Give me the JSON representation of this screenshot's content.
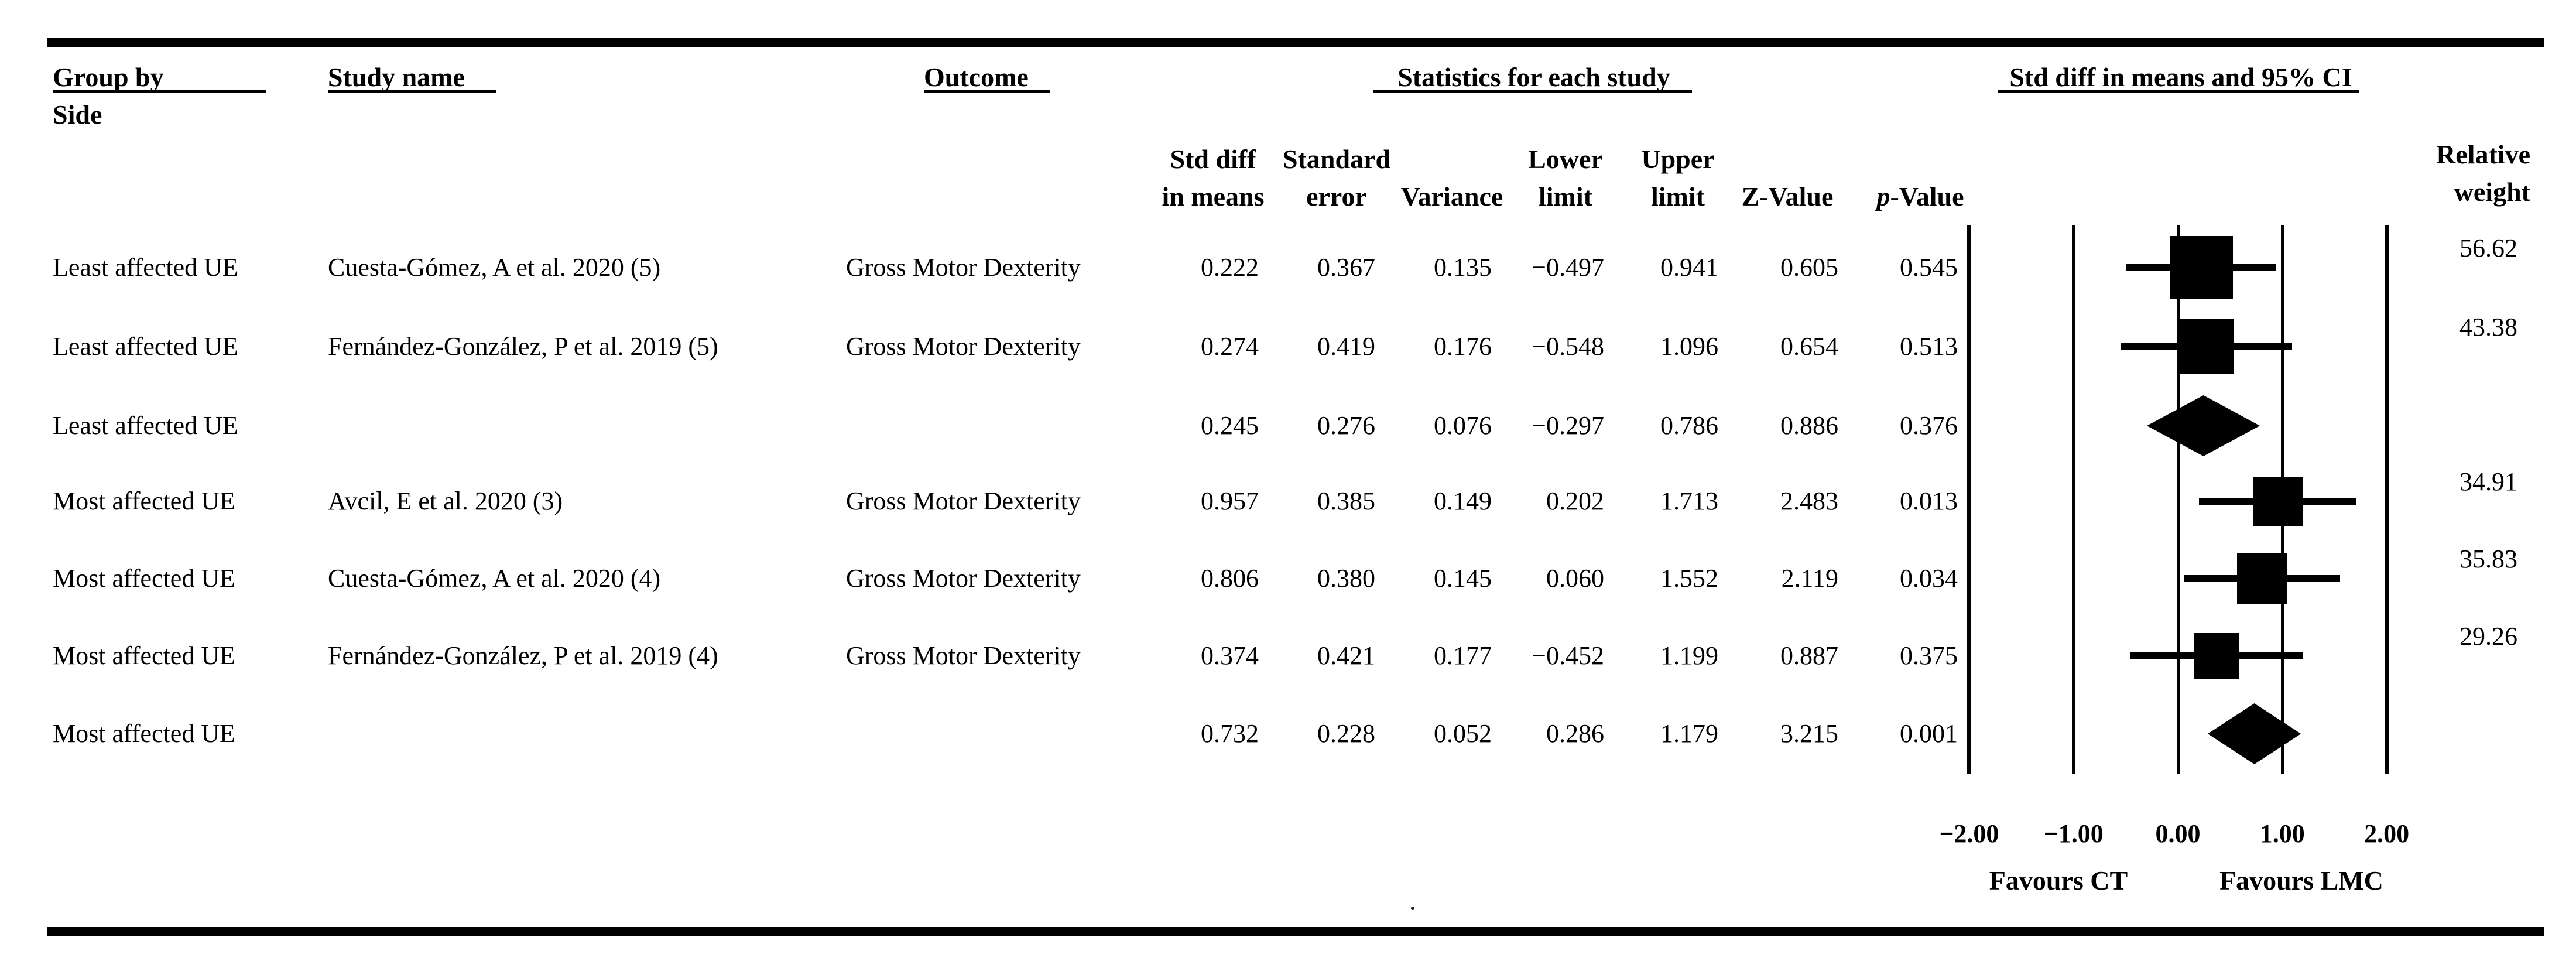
{
  "figure": {
    "title_row": {
      "group_by": "Group by",
      "group_by_line2": "Side",
      "study_name": "Study name",
      "outcome": "Outcome",
      "statistics": "Statistics for each study",
      "ci": "Std diff in means and 95% CI"
    },
    "stat_columns": [
      {
        "line1": "Std diff",
        "line2": "in means"
      },
      {
        "line1": "Standard",
        "line2": "error"
      },
      {
        "line1": "",
        "line2": "Variance"
      },
      {
        "line1": "Lower",
        "line2": "limit"
      },
      {
        "line1": "Upper",
        "line2": "limit"
      },
      {
        "line1": "",
        "line2": "Z-Value"
      },
      {
        "line1": "",
        "line2": "-Value",
        "italic_prefix": "p"
      }
    ],
    "relative_weight": {
      "line1": "Relative",
      "line2": "weight"
    },
    "rows": [
      {
        "group": "Least affected UE",
        "study": "Cuesta-Gómez, A et al. 2020 (5)",
        "outcome": "Gross Motor Dexterity",
        "stats": [
          "0.222",
          "0.367",
          "0.135",
          "−0.497",
          "0.941",
          "0.605",
          "0.545"
        ],
        "weight": "56.62",
        "marker": {
          "type": "square",
          "mean": 0.222,
          "lower": -0.497,
          "upper": 0.941,
          "weight": 56.62
        }
      },
      {
        "group": "Least affected UE",
        "study": "Fernández-González, P et al. 2019 (5)",
        "outcome": "Gross Motor Dexterity",
        "stats": [
          "0.274",
          "0.419",
          "0.176",
          "−0.548",
          "1.096",
          "0.654",
          "0.513"
        ],
        "weight": "43.38",
        "marker": {
          "type": "square",
          "mean": 0.274,
          "lower": -0.548,
          "upper": 1.096,
          "weight": 43.38
        }
      },
      {
        "group": "Least affected UE",
        "study": "",
        "outcome": "",
        "stats": [
          "0.245",
          "0.276",
          "0.076",
          "−0.297",
          "0.786",
          "0.886",
          "0.376"
        ],
        "weight": "",
        "marker": {
          "type": "diamond",
          "mean": 0.245,
          "lower": -0.297,
          "upper": 0.786
        }
      },
      {
        "group": "Most affected UE",
        "study": "Avcil, E et al. 2020 (3)",
        "outcome": "Gross Motor Dexterity",
        "stats": [
          "0.957",
          "0.385",
          "0.149",
          "0.202",
          "1.713",
          "2.483",
          "0.013"
        ],
        "weight": "34.91",
        "marker": {
          "type": "square",
          "mean": 0.957,
          "lower": 0.202,
          "upper": 1.713,
          "weight": 34.91
        }
      },
      {
        "group": "Most affected UE",
        "study": "Cuesta-Gómez, A et al. 2020 (4)",
        "outcome": "Gross Motor Dexterity",
        "stats": [
          "0.806",
          "0.380",
          "0.145",
          "0.060",
          "1.552",
          "2.119",
          "0.034"
        ],
        "weight": "35.83",
        "marker": {
          "type": "square",
          "mean": 0.806,
          "lower": 0.06,
          "upper": 1.552,
          "weight": 35.83
        }
      },
      {
        "group": "Most affected UE",
        "study": "Fernández-González, P et al. 2019 (4)",
        "outcome": "Gross Motor Dexterity",
        "stats": [
          "0.374",
          "0.421",
          "0.177",
          "−0.452",
          "1.199",
          "0.887",
          "0.375"
        ],
        "weight": "29.26",
        "marker": {
          "type": "square",
          "mean": 0.374,
          "lower": -0.452,
          "upper": 1.199,
          "weight": 29.26
        }
      },
      {
        "group": "Most affected UE",
        "study": "",
        "outcome": "",
        "stats": [
          "0.732",
          "0.228",
          "0.052",
          "0.286",
          "1.179",
          "3.215",
          "0.001"
        ],
        "weight": "",
        "marker": {
          "type": "diamond",
          "mean": 0.732,
          "lower": 0.286,
          "upper": 1.179
        }
      }
    ],
    "axis": {
      "ticks": [
        "−2.00",
        "−1.00",
        "0.00",
        "1.00",
        "2.00"
      ],
      "tick_values": [
        -2,
        -1,
        0,
        1,
        2
      ],
      "favours_left": "Favours CT",
      "favours_right": "Favours LMC"
    },
    "stray_dot": "."
  },
  "chart_data": {
    "type": "forest",
    "title": "Std diff in means and 95% CI",
    "xlabel": "Std diff in means",
    "xlim": [
      -2,
      2
    ],
    "x_ticks": [
      -2.0,
      -1.0,
      0.0,
      1.0,
      2.0
    ],
    "favours": {
      "left": "Favours CT",
      "right": "Favours LMC"
    },
    "grouping_label": "Group by Side",
    "outcome_label": "Gross Motor Dexterity",
    "groups": [
      {
        "name": "Least affected UE",
        "studies": [
          {
            "study": "Cuesta-Gómez, A et al. 2020 (5)",
            "outcome": "Gross Motor Dexterity",
            "std_diff_in_means": 0.222,
            "standard_error": 0.367,
            "variance": 0.135,
            "lower_limit": -0.497,
            "upper_limit": 0.941,
            "z_value": 0.605,
            "p_value": 0.545,
            "relative_weight": 56.62
          },
          {
            "study": "Fernández-González, P et al. 2019 (5)",
            "outcome": "Gross Motor Dexterity",
            "std_diff_in_means": 0.274,
            "standard_error": 0.419,
            "variance": 0.176,
            "lower_limit": -0.548,
            "upper_limit": 1.096,
            "z_value": 0.654,
            "p_value": 0.513,
            "relative_weight": 43.38
          }
        ],
        "summary": {
          "std_diff_in_means": 0.245,
          "standard_error": 0.276,
          "variance": 0.076,
          "lower_limit": -0.297,
          "upper_limit": 0.786,
          "z_value": 0.886,
          "p_value": 0.376
        }
      },
      {
        "name": "Most affected UE",
        "studies": [
          {
            "study": "Avcil, E et al. 2020 (3)",
            "outcome": "Gross Motor Dexterity",
            "std_diff_in_means": 0.957,
            "standard_error": 0.385,
            "variance": 0.149,
            "lower_limit": 0.202,
            "upper_limit": 1.713,
            "z_value": 2.483,
            "p_value": 0.013,
            "relative_weight": 34.91
          },
          {
            "study": "Cuesta-Gómez, A et al. 2020 (4)",
            "outcome": "Gross Motor Dexterity",
            "std_diff_in_means": 0.806,
            "standard_error": 0.38,
            "variance": 0.145,
            "lower_limit": 0.06,
            "upper_limit": 1.552,
            "z_value": 2.119,
            "p_value": 0.034,
            "relative_weight": 35.83
          },
          {
            "study": "Fernández-González, P et al. 2019 (4)",
            "outcome": "Gross Motor Dexterity",
            "std_diff_in_means": 0.374,
            "standard_error": 0.421,
            "variance": 0.177,
            "lower_limit": -0.452,
            "upper_limit": 1.199,
            "z_value": 0.887,
            "p_value": 0.375,
            "relative_weight": 29.26
          }
        ],
        "summary": {
          "std_diff_in_means": 0.732,
          "standard_error": 0.228,
          "variance": 0.052,
          "lower_limit": 0.286,
          "upper_limit": 1.179,
          "z_value": 3.215,
          "p_value": 0.001
        }
      }
    ]
  }
}
